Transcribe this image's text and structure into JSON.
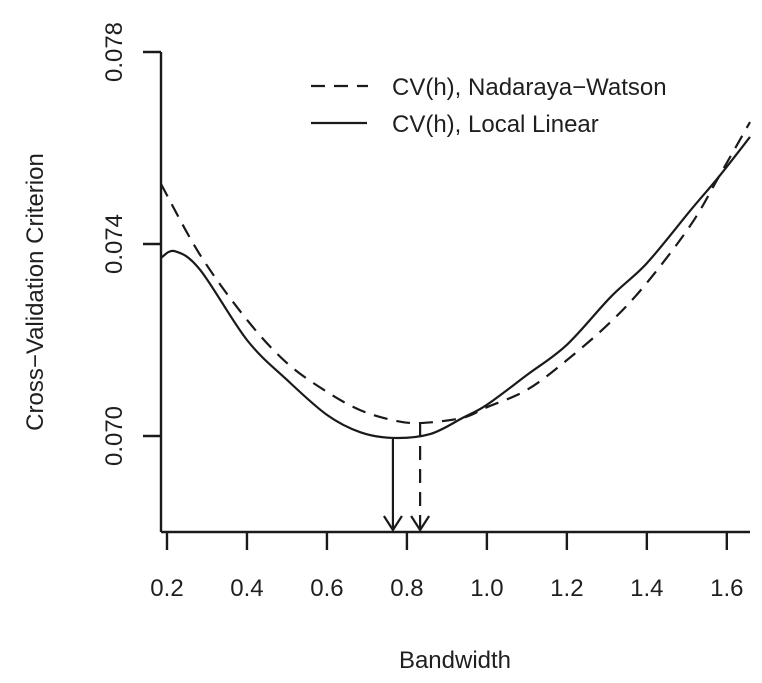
{
  "chart_data": {
    "type": "line",
    "title": "",
    "xlabel": "Bandwidth",
    "ylabel": "Cross−Validation Criterion",
    "xlim": [
      0.185,
      1.658
    ],
    "ylim": [
      0.068,
      0.078
    ],
    "x_ticks": [
      0.2,
      0.4,
      0.6,
      0.8,
      1.0,
      1.2,
      1.4,
      1.6
    ],
    "x_tick_labels": [
      "0.2",
      "0.4",
      "0.6",
      "0.8",
      "1.0",
      "1.2",
      "1.4",
      "1.6"
    ],
    "y_ticks": [
      0.07,
      0.074,
      0.078
    ],
    "y_tick_labels": [
      "0.070",
      "0.074",
      "0.078"
    ],
    "grid": false,
    "legend_position": "top-right",
    "series": [
      {
        "name": "CV(h), Nadaraya−Watson",
        "style": "dashed",
        "x": [
          0.185,
          0.283,
          0.4,
          0.5,
          0.6,
          0.683,
          0.765,
          0.833,
          0.94,
          1.0,
          1.1,
          1.2,
          1.31,
          1.4,
          1.51,
          1.58,
          1.658
        ],
        "y": [
          0.07525,
          0.07377,
          0.07242,
          0.07152,
          0.07092,
          0.07054,
          0.07033,
          0.07027,
          0.07038,
          0.0706,
          0.07096,
          0.07158,
          0.07238,
          0.07319,
          0.0744,
          0.0754,
          0.07654
        ],
        "minimum": {
          "x": 0.833,
          "y": 0.07027
        }
      },
      {
        "name": "CV(h), Local Linear",
        "style": "solid",
        "x": [
          0.185,
          0.22,
          0.283,
          0.4,
          0.5,
          0.6,
          0.683,
          0.765,
          0.858,
          0.94,
          1.0,
          1.1,
          1.2,
          1.31,
          1.4,
          1.51,
          1.58,
          1.658
        ],
        "y": [
          0.07371,
          0.07385,
          0.07346,
          0.072,
          0.07117,
          0.07044,
          0.07008,
          0.06996,
          0.07004,
          0.07038,
          0.07065,
          0.07127,
          0.0719,
          0.0729,
          0.0736,
          0.07471,
          0.0754,
          0.07623
        ],
        "minimum": {
          "x": 0.765,
          "y": 0.06996
        }
      }
    ],
    "annotations": [
      {
        "type": "arrow",
        "series": "CV(h), Local Linear",
        "style": "solid",
        "x": 0.765,
        "from_y": 0.06996
      },
      {
        "type": "arrow",
        "series": "CV(h), Nadaraya−Watson",
        "style": "dashed",
        "x": 0.833,
        "from_y": 0.07027
      }
    ]
  }
}
